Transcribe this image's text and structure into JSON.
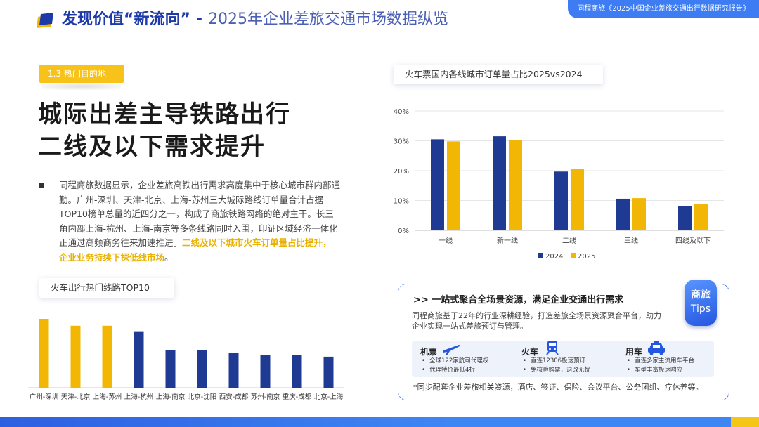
{
  "header": {
    "title_strong": "发现价值“新流向”",
    "title_dash": "-",
    "title_light": "2025年企业差旅交通市场数据纵览",
    "top_tag": "同程商旅《2025中国企业差旅交通出行数据研究报告》"
  },
  "section_tag": "1.3 热门目的地",
  "headline": {
    "line1": "城际出差主导铁路出行",
    "line2": "二线及以下需求提升"
  },
  "paragraph": {
    "normal": "同程商旅数据显示，企业差旅高铁出行需求高度集中于核心城市群内部通勤。广州-深圳、天津-北京、上海-苏州三大城际路线订单量合计占据TOP10榜单总量的近四分之一，构成了商旅铁路网络的绝对主干。长三角内部上海-杭州、上海-南京等多条线路同时入围，印证区域经济一体化正通过高频商务往来加速推进。",
    "highlight": "二线及以下城市火车订单量占比提升，企业业务持续下探低线市场",
    "end": "。"
  },
  "left_chart_title": "火车出行热门线路TOP10",
  "right_chart_title": "火车票国内各线城市订单量占比2025vs2024",
  "colors": {
    "blue": "#1f3a93",
    "yellow": "#f2b705",
    "accent": "#3d7cf2"
  },
  "chart_data": [
    {
      "type": "bar",
      "title": "火车出行热门线路TOP10",
      "categories": [
        "广州-深圳",
        "天津-北京",
        "上海-苏州",
        "上海-杭州",
        "上海-南京",
        "北京-沈阳",
        "西安-成都",
        "苏州-南京",
        "重庆-成都",
        "北京-上海"
      ],
      "values": [
        100,
        90,
        90,
        81,
        55,
        55,
        50,
        47,
        47,
        45
      ],
      "colors": [
        "#f2b705",
        "#f2b705",
        "#f2b705",
        "#1f3a93",
        "#1f3a93",
        "#1f3a93",
        "#1f3a93",
        "#1f3a93",
        "#1f3a93",
        "#1f3a93"
      ],
      "ylim": [
        0,
        100
      ],
      "grid": false
    },
    {
      "type": "bar",
      "title": "火车票国内各线城市订单量占比2025vs2024",
      "categories": [
        "一线",
        "新一线",
        "二线",
        "三线",
        "四线及以下"
      ],
      "series": [
        {
          "name": "2024",
          "values": [
            30.5,
            31.5,
            19.7,
            10.6,
            8.0
          ],
          "color": "#1f3a93"
        },
        {
          "name": "2025",
          "values": [
            29.8,
            30.2,
            20.5,
            10.8,
            8.7
          ],
          "color": "#f2b705"
        }
      ],
      "yticks": [
        "0%",
        "10%",
        "20%",
        "30%",
        "40%"
      ],
      "ylim": [
        0,
        40
      ],
      "grid": true,
      "legend": "bottom"
    }
  ],
  "tips": {
    "badge_line1": "商旅",
    "badge_line2": "Tips",
    "title": ">> 一站式聚合全场景资源，满足企业交通出行需求",
    "desc": "同程商旅基于22年的行业深耕经验，打造差旅全场景资源聚合平台，助力企业实现一站式差旅预订与管理。",
    "modes": [
      {
        "name": "机票",
        "icon": "plane-icon",
        "items": [
          "全球122家航司代理权",
          "代理特价最低4折"
        ]
      },
      {
        "name": "火车",
        "icon": "train-icon",
        "items": [
          "直连12306极速预订",
          "免核验购票，退改无忧"
        ]
      },
      {
        "name": "用车",
        "icon": "car-icon",
        "items": [
          "直连多家主流用车平台",
          "车型丰富极速响应"
        ]
      }
    ],
    "footnote": "*同步配套企业差旅相关资源，酒店、签证、保险、会议平台、公务团组、疗休养等。"
  }
}
